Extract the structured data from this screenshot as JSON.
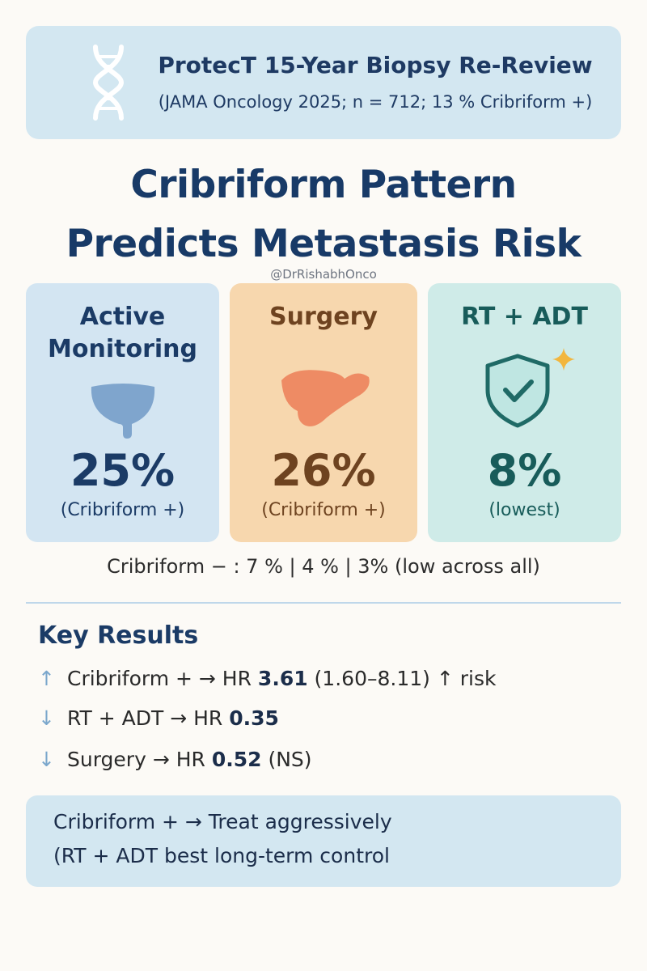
{
  "header": {
    "icon": "dna-icon",
    "title": "ProtecT 15-Year Biopsy Re-Review",
    "subtitle": "(JAMA Oncology 2025; n = 712; 13 % Cribriform +)"
  },
  "headline": {
    "line1": "Cribriform Pattern",
    "line2": "Predicts Metastasis Risk"
  },
  "handle": "@DrRishabhOnco",
  "cards": [
    {
      "title_line1": "Active",
      "title_line2": "Monitoring",
      "icon": "bladder-icon",
      "percent": "25%",
      "note": "(Cribriform +)",
      "color": "#d3e5f2"
    },
    {
      "title": "Surgery",
      "icon": "liver-icon",
      "percent": "26%",
      "note": "(Cribriform +)",
      "color": "#f7d7ae"
    },
    {
      "title": "RT + ADT",
      "icon": "shield-check-icon",
      "percent": "8%",
      "note": "(lowest)",
      "color": "#cfebe8"
    }
  ],
  "cribriform_negative": "Cribriform − : 7 % | 4 % | 3% (low across all)",
  "key_results": {
    "title": "Key Results",
    "items": [
      {
        "arrow": "↑",
        "pre": "Cribriform + → HR ",
        "hr": "3.61",
        "post": " (1.60–8.11) ↑ risk"
      },
      {
        "arrow": "↓",
        "pre": "RT + ADT → HR ",
        "hr": "0.35",
        "post": ""
      },
      {
        "arrow": "↓",
        "pre": "Surgery → HR ",
        "hr": "0.52",
        "post": " (NS)"
      }
    ]
  },
  "footer": {
    "line1": "Cribriform + → Treat aggressively",
    "line2": "(RT + ADT best long-term control"
  }
}
